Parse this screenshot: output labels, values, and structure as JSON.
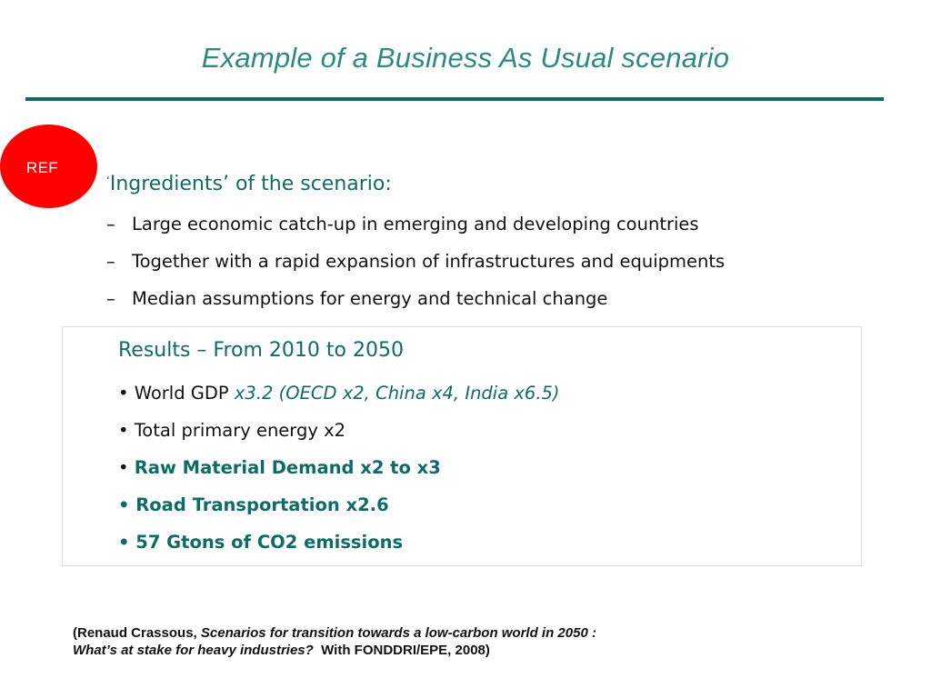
{
  "slide": {
    "title": "Example of a Business As Usual scenario",
    "ref_badge": "REF",
    "ingredients": {
      "heading_quote": "‘",
      "heading": "Ingredients’ of the scenario:",
      "items": [
        "Large economic catch-up in emerging and developing countries",
        "Together with a rapid expansion of infrastructures and equipments",
        "Median assumptions for energy and technical change"
      ],
      "bullet": "–"
    },
    "results": {
      "heading": "Results – From 2010 to 2050",
      "gdp_label": "• World GDP ",
      "gdp_value": "x3.2 (OECD x2, China x4, India x6.5)",
      "energy": "• Total primary energy x2",
      "raw_bullet": "• ",
      "raw_material": "Raw Material Demand x2 to x3",
      "road": "• Road Transportation x2.6",
      "co2": "• 57 Gtons of CO2 emissions"
    },
    "citation": {
      "open": "(Renaud Crassous, ",
      "title_line1": "Scenarios for transition towards a low-carbon world in 2050 :",
      "title_line2": "What’s at stake for heavy industries?",
      "close": "  With FONDDRI/EPE, 2008)"
    },
    "colors": {
      "title": "#2e8a7f",
      "accent": "#0f6b66",
      "badge": "#ff0000"
    }
  }
}
